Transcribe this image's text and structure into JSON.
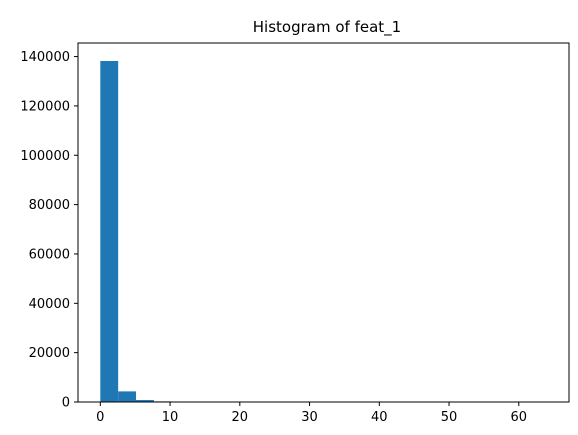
{
  "chart_data": {
    "type": "bar",
    "subtype": "histogram",
    "title": "Histogram of feat_1",
    "xlabel": "",
    "ylabel": "",
    "bin_width": 2.56,
    "bins": [
      {
        "x0": 0.0,
        "x1": 2.56,
        "count": 138200
      },
      {
        "x0": 2.56,
        "x1": 5.12,
        "count": 4300
      },
      {
        "x0": 5.12,
        "x1": 7.68,
        "count": 800
      },
      {
        "x0": 7.68,
        "x1": 10.24,
        "count": 250
      },
      {
        "x0": 10.24,
        "x1": 12.8,
        "count": 60
      },
      {
        "x0": 12.8,
        "x1": 15.36,
        "count": 25
      },
      {
        "x0": 15.36,
        "x1": 17.92,
        "count": 12
      },
      {
        "x0": 17.92,
        "x1": 20.48,
        "count": 6
      },
      {
        "x0": 20.48,
        "x1": 23.04,
        "count": 4
      },
      {
        "x0": 23.04,
        "x1": 25.6,
        "count": 3
      },
      {
        "x0": 25.6,
        "x1": 28.16,
        "count": 2
      },
      {
        "x0": 28.16,
        "x1": 30.72,
        "count": 1
      },
      {
        "x0": 30.72,
        "x1": 33.28,
        "count": 1
      },
      {
        "x0": 33.28,
        "x1": 35.84,
        "count": 1
      },
      {
        "x0": 35.84,
        "x1": 38.4,
        "count": 1
      },
      {
        "x0": 38.4,
        "x1": 40.96,
        "count": 0
      },
      {
        "x0": 40.96,
        "x1": 43.52,
        "count": 1
      },
      {
        "x0": 43.52,
        "x1": 46.08,
        "count": 0
      },
      {
        "x0": 46.08,
        "x1": 48.64,
        "count": 0
      },
      {
        "x0": 48.64,
        "x1": 51.2,
        "count": 1
      },
      {
        "x0": 51.2,
        "x1": 53.76,
        "count": 0
      },
      {
        "x0": 53.76,
        "x1": 56.32,
        "count": 0
      },
      {
        "x0": 56.32,
        "x1": 58.88,
        "count": 0
      },
      {
        "x0": 58.88,
        "x1": 61.44,
        "count": 0
      },
      {
        "x0": 61.44,
        "x1": 64.0,
        "count": 1
      }
    ],
    "xlim": [
      -3.2,
      67.2
    ],
    "ylim": [
      0,
      145500
    ],
    "xticks": [
      0,
      10,
      20,
      30,
      40,
      50,
      60
    ],
    "xtick_labels": [
      "0",
      "10",
      "20",
      "30",
      "40",
      "50",
      "60"
    ],
    "yticks": [
      0,
      20000,
      40000,
      60000,
      80000,
      100000,
      120000,
      140000
    ],
    "ytick_labels": [
      "0",
      "20000",
      "40000",
      "60000",
      "80000",
      "100000",
      "120000",
      "140000"
    ],
    "grid": false,
    "bar_color": "#1f77b4"
  }
}
